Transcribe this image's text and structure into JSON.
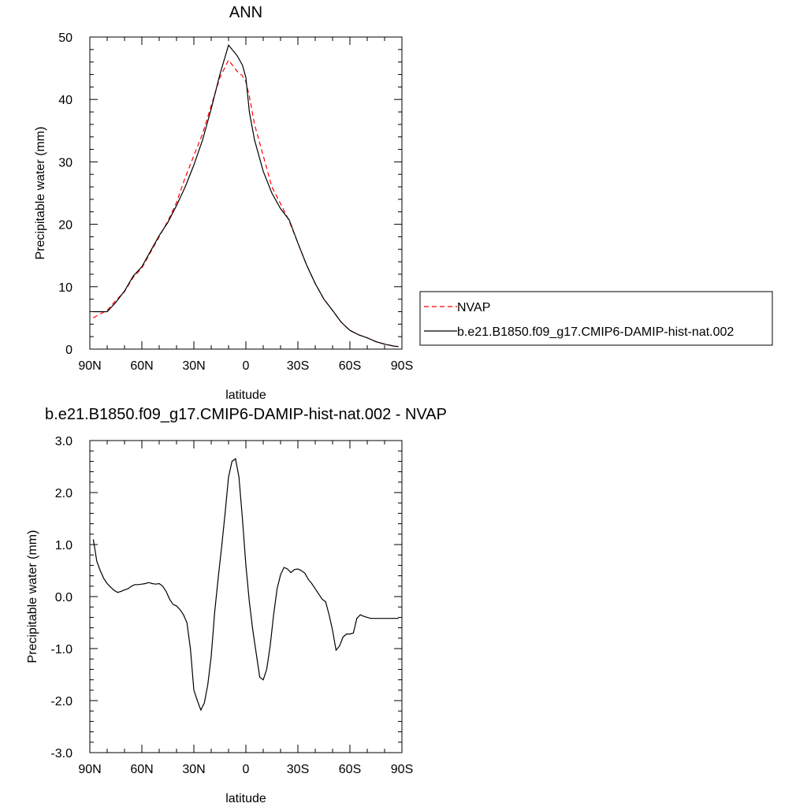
{
  "chart_data": [
    {
      "type": "line",
      "title": "ANN",
      "xlabel": "latitude",
      "ylabel": "Precipitable water (mm)",
      "xlim": [
        90,
        -90
      ],
      "ylim": [
        0,
        50
      ],
      "xticks": [
        90,
        60,
        30,
        0,
        -30,
        -60,
        -90
      ],
      "xtick_labels": [
        "90N",
        "60N",
        "30N",
        "0",
        "30S",
        "60S",
        "90S"
      ],
      "yticks": [
        0,
        10,
        20,
        30,
        40,
        50
      ],
      "ytick_labels": [
        "0",
        "10",
        "20",
        "30",
        "40",
        "50"
      ],
      "grid": false,
      "legend_position": "right",
      "series": [
        {
          "name": "NVAP",
          "color": "#ff0000",
          "dash": "dashed",
          "x": [
            88,
            85,
            80,
            75,
            70,
            65,
            60,
            55,
            50,
            45,
            40,
            35,
            30,
            25,
            20,
            15,
            10,
            5,
            2,
            0,
            -2,
            -5,
            -10,
            -15,
            -20,
            -25,
            -30,
            -35,
            -40,
            -45,
            -50,
            -55,
            -60,
            -65,
            -70,
            -75,
            -80,
            -85,
            -88
          ],
          "y": [
            5.0,
            5.5,
            6.2,
            7.8,
            9.2,
            11.5,
            13.0,
            15.5,
            18.0,
            20.5,
            23.5,
            27.5,
            31.0,
            34.5,
            39.0,
            43.5,
            46.3,
            44.5,
            43.8,
            42.8,
            40.5,
            36.0,
            31.0,
            26.0,
            23.3,
            20.5,
            17.0,
            13.5,
            10.5,
            8.0,
            6.2,
            4.3,
            3.0,
            2.3,
            1.8,
            1.2,
            0.8,
            0.5,
            0.4
          ],
          "_note": ""
        },
        {
          "name": "b.e21.B1850.f09_g17.CMIP6-DAMIP-hist-nat.002",
          "color": "#000000",
          "dash": "solid",
          "x": [
            88,
            85,
            80,
            75,
            70,
            65,
            60,
            55,
            50,
            45,
            40,
            35,
            30,
            25,
            20,
            15,
            10,
            5,
            2,
            0,
            -2,
            -5,
            -10,
            -15,
            -20,
            -25,
            -30,
            -35,
            -40,
            -45,
            -50,
            -55,
            -60,
            -65,
            -70,
            -75,
            -80,
            -85,
            -88
          ],
          "y": [
            6.0,
            6.0,
            6.0,
            7.5,
            9.3,
            11.7,
            13.2,
            15.7,
            18.2,
            20.3,
            23.0,
            26.0,
            29.5,
            33.5,
            38.5,
            44.0,
            48.7,
            47.0,
            45.5,
            43.5,
            38.0,
            33.5,
            28.5,
            25.0,
            22.5,
            20.7,
            17.0,
            13.5,
            10.5,
            8.0,
            6.2,
            4.3,
            3.0,
            2.3,
            1.8,
            1.2,
            0.8,
            0.5,
            0.4
          ]
        }
      ]
    },
    {
      "type": "line",
      "title": "b.e21.B1850.f09_g17.CMIP6-DAMIP-hist-nat.002 - NVAP",
      "xlabel": "latitude",
      "ylabel": "Precipitable water (mm)",
      "xlim": [
        90,
        -90
      ],
      "ylim": [
        -3.0,
        3.0
      ],
      "xticks": [
        90,
        60,
        30,
        0,
        -30,
        -60,
        -90
      ],
      "xtick_labels": [
        "90N",
        "60N",
        "30N",
        "0",
        "30S",
        "60S",
        "90S"
      ],
      "yticks": [
        -3,
        -2,
        -1,
        0,
        1,
        2,
        3
      ],
      "ytick_labels": [
        "-3.0",
        "-2.0",
        "-1.0",
        "0.0",
        "1.0",
        "2.0",
        "3.0"
      ],
      "grid": false,
      "series": [
        {
          "color": "#000000",
          "dash": "solid",
          "x": [
            88,
            86,
            84,
            82,
            80,
            78,
            76,
            74,
            72,
            70,
            68,
            66,
            64,
            62,
            60,
            58,
            56,
            54,
            52,
            50,
            48,
            46,
            44,
            42,
            40,
            38,
            36,
            34,
            32,
            30,
            28,
            26,
            24,
            22,
            20,
            18,
            16,
            14,
            12,
            10,
            8,
            6,
            4,
            2,
            0,
            -2,
            -4,
            -6,
            -8,
            -10,
            -12,
            -14,
            -16,
            -18,
            -20,
            -22,
            -24,
            -26,
            -28,
            -30,
            -32,
            -34,
            -36,
            -38,
            -40,
            -42,
            -44,
            -46,
            -48,
            -50,
            -52,
            -54,
            -56,
            -58,
            -60,
            -62,
            -64,
            -66,
            -68,
            -70,
            -72,
            -74,
            -76,
            -78,
            -80,
            -82,
            -84,
            -86,
            -88
          ],
          "y": [
            1.1,
            0.68,
            0.5,
            0.35,
            0.25,
            0.18,
            0.12,
            0.08,
            0.1,
            0.13,
            0.15,
            0.2,
            0.23,
            0.23,
            0.24,
            0.25,
            0.27,
            0.25,
            0.24,
            0.25,
            0.2,
            0.1,
            -0.05,
            -0.15,
            -0.18,
            -0.25,
            -0.35,
            -0.5,
            -1.0,
            -1.8,
            -2.0,
            -2.18,
            -2.05,
            -1.7,
            -1.15,
            -0.3,
            0.35,
            0.95,
            1.6,
            2.3,
            2.6,
            2.65,
            2.3,
            1.5,
            0.6,
            -0.1,
            -0.65,
            -1.1,
            -1.55,
            -1.6,
            -1.4,
            -0.95,
            -0.35,
            0.15,
            0.42,
            0.56,
            0.53,
            0.46,
            0.52,
            0.53,
            0.5,
            0.45,
            0.33,
            0.25,
            0.15,
            0.05,
            -0.05,
            -0.1,
            -0.35,
            -0.65,
            -1.03,
            -0.95,
            -0.78,
            -0.72,
            -0.72,
            -0.7,
            -0.42,
            -0.35,
            -0.38,
            -0.4,
            -0.42,
            -0.42,
            -0.42,
            -0.42,
            -0.42,
            -0.42,
            -0.42,
            -0.42,
            -0.42
          ],
          "_note": ""
        }
      ]
    }
  ]
}
